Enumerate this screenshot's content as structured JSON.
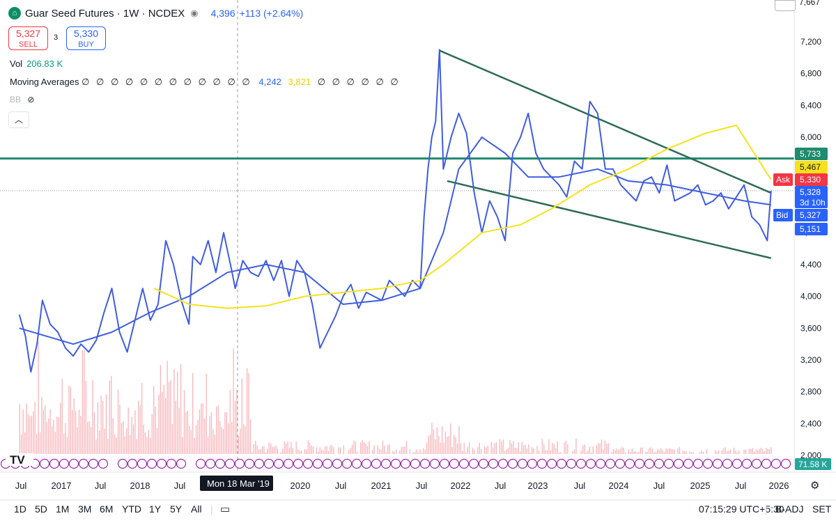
{
  "header": {
    "title": "Guar Seed Futures · 1W · NCDEX",
    "price": "4,396",
    "change": "+113 (+2.64%)",
    "sell_price": "5,327",
    "sell_label": "SELL",
    "buy_price": "5,330",
    "buy_label": "BUY",
    "spread": "3",
    "volume_label": "Vol",
    "volume_value": "206.83 K",
    "ma_label": "Moving Averages",
    "ma_zeros_a": "∅ ∅ ∅ ∅ ∅ ∅ ∅ ∅ ∅ ∅ ∅ ∅",
    "ma_blue": "4,242",
    "ma_yellow": "3,821",
    "ma_zeros_b": "∅ ∅ ∅ ∅ ∅ ∅",
    "bb_label": "BB",
    "collapse_icon": "chevron-up",
    "top_price_fragment": "7,667"
  },
  "colors": {
    "price_line": "#3f5ce0",
    "ma_short": "#3f5ce0",
    "ma_long": "#f5e21b",
    "trend": "#2e6b57",
    "hline": "#1e8a6e",
    "ask": "#f23645",
    "bid": "#2962ff",
    "volume": "#f7a7ad"
  },
  "chart_data": {
    "type": "line",
    "y_axis": {
      "ticks": [
        "7,200",
        "6,800",
        "6,400",
        "6,000",
        "5,600",
        "5,200",
        "4,800",
        "4,400",
        "4,000",
        "3,600",
        "3,200",
        "2,800",
        "2,400",
        "2,000"
      ],
      "range": [
        2000,
        7300
      ]
    },
    "x_axis": {
      "ticks": [
        "Jul",
        "2017",
        "Jul",
        "2018",
        "Jul",
        "2019",
        "Jul",
        "2020",
        "Jul",
        "2021",
        "Jul",
        "2022",
        "Jul",
        "2023",
        "Jul",
        "2024",
        "Jul",
        "2025",
        "Jul",
        "2026"
      ]
    },
    "crosshair_label": "Mon 18 Mar '19",
    "price_labels": [
      {
        "text": "5,733",
        "bg": "#1e8a6e",
        "fg": "#ffffff",
        "value": 5733
      },
      {
        "text": "5,467",
        "bg": "#f5e21b",
        "fg": "#131722",
        "value": 5467
      },
      {
        "text": "5,330",
        "bg": "#f23645",
        "fg": "#ffffff",
        "value": 5330,
        "tag": "Ask"
      },
      {
        "text": "5,328",
        "bg": "#2962ff",
        "fg": "#ffffff",
        "value": 5328,
        "sub": "3d 10h"
      },
      {
        "text": "5,327",
        "bg": "#2962ff",
        "fg": "#ffffff",
        "value": 5327,
        "tag": "Bid"
      },
      {
        "text": "5,151",
        "bg": "#2962ff",
        "fg": "#ffffff",
        "value": 5151
      }
    ],
    "volume_label": "71.58 K",
    "horizontal_line": 5733,
    "trend_lines": [
      {
        "from": [
          2021.75,
          7090
        ],
        "to": [
          2026.05,
          5300
        ]
      },
      {
        "from": [
          2021.85,
          5450
        ],
        "to": [
          2026.05,
          4480
        ]
      }
    ],
    "series": [
      {
        "name": "",
        "points": [
          [
            2016.3,
            3770
          ],
          [
            2016.38,
            3500
          ],
          [
            2016.45,
            3050
          ],
          [
            2016.53,
            3400
          ],
          [
            2016.6,
            3950
          ],
          [
            2016.7,
            3650
          ],
          [
            2016.8,
            3550
          ],
          [
            2016.9,
            3350
          ],
          [
            2017.0,
            3250
          ],
          [
            2017.1,
            3400
          ],
          [
            2017.2,
            3300
          ],
          [
            2017.3,
            3450
          ],
          [
            2017.4,
            3800
          ],
          [
            2017.5,
            4100
          ],
          [
            2017.6,
            3550
          ],
          [
            2017.7,
            3300
          ],
          [
            2017.8,
            3700
          ],
          [
            2017.9,
            4100
          ],
          [
            2018.0,
            3700
          ],
          [
            2018.1,
            3900
          ],
          [
            2018.2,
            4700
          ],
          [
            2018.3,
            4400
          ],
          [
            2018.4,
            3950
          ],
          [
            2018.5,
            3650
          ],
          [
            2018.55,
            4500
          ],
          [
            2018.65,
            4400
          ],
          [
            2018.75,
            4700
          ],
          [
            2018.85,
            4300
          ],
          [
            2018.95,
            4800
          ],
          [
            2019.05,
            4350
          ],
          [
            2019.1,
            4100
          ],
          [
            2019.2,
            4450
          ],
          [
            2019.3,
            4300
          ],
          [
            2019.4,
            4250
          ],
          [
            2019.5,
            4450
          ],
          [
            2019.6,
            4200
          ],
          [
            2019.7,
            4450
          ],
          [
            2019.8,
            4000
          ],
          [
            2019.9,
            4450
          ],
          [
            2020.0,
            4300
          ],
          [
            2020.1,
            3900
          ],
          [
            2020.2,
            3350
          ],
          [
            2020.3,
            3550
          ],
          [
            2020.4,
            3750
          ],
          [
            2020.5,
            4000
          ],
          [
            2020.6,
            4150
          ],
          [
            2020.7,
            3850
          ],
          [
            2020.8,
            4050
          ],
          [
            2020.9,
            4000
          ],
          [
            2021.0,
            3950
          ],
          [
            2021.1,
            4200
          ],
          [
            2021.2,
            4100
          ],
          [
            2021.3,
            4000
          ],
          [
            2021.4,
            4200
          ],
          [
            2021.5,
            4100
          ],
          [
            2021.55,
            5000
          ],
          [
            2021.6,
            5600
          ],
          [
            2021.65,
            6000
          ],
          [
            2021.7,
            6200
          ],
          [
            2021.75,
            7100
          ],
          [
            2021.8,
            5600
          ],
          [
            2021.9,
            6000
          ],
          [
            2022.0,
            6300
          ],
          [
            2022.1,
            6050
          ],
          [
            2022.2,
            5300
          ],
          [
            2022.3,
            4800
          ],
          [
            2022.4,
            5200
          ],
          [
            2022.5,
            5000
          ],
          [
            2022.6,
            4700
          ],
          [
            2022.7,
            5800
          ],
          [
            2022.8,
            6000
          ],
          [
            2022.9,
            6300
          ],
          [
            2023.0,
            5800
          ],
          [
            2023.1,
            5600
          ],
          [
            2023.2,
            5500
          ],
          [
            2023.3,
            5400
          ],
          [
            2023.4,
            5250
          ],
          [
            2023.5,
            5700
          ],
          [
            2023.6,
            5600
          ],
          [
            2023.7,
            6450
          ],
          [
            2023.8,
            6300
          ],
          [
            2023.9,
            5600
          ],
          [
            2024.0,
            5600
          ],
          [
            2024.1,
            5400
          ],
          [
            2024.2,
            5300
          ],
          [
            2024.3,
            5200
          ],
          [
            2024.4,
            5450
          ],
          [
            2024.5,
            5500
          ],
          [
            2024.6,
            5300
          ],
          [
            2024.7,
            5650
          ],
          [
            2024.8,
            5200
          ],
          [
            2024.9,
            5250
          ],
          [
            2025.0,
            5300
          ],
          [
            2025.1,
            5400
          ],
          [
            2025.2,
            5150
          ],
          [
            2025.3,
            5200
          ],
          [
            2025.4,
            5300
          ],
          [
            2025.5,
            5100
          ],
          [
            2025.6,
            5250
          ],
          [
            2025.7,
            5400
          ],
          [
            2025.8,
            5000
          ],
          [
            2025.9,
            4900
          ],
          [
            2026.0,
            4700
          ],
          [
            2026.05,
            5328
          ]
        ]
      },
      {
        "name": "",
        "points": [
          [
            2016.3,
            3600
          ],
          [
            2017.0,
            3400
          ],
          [
            2017.5,
            3550
          ],
          [
            2018.0,
            3800
          ],
          [
            2018.5,
            4000
          ],
          [
            2019.0,
            4300
          ],
          [
            2019.5,
            4400
          ],
          [
            2020.0,
            4300
          ],
          [
            2020.5,
            3900
          ],
          [
            2021.0,
            3950
          ],
          [
            2021.5,
            4100
          ],
          [
            2021.8,
            4800
          ],
          [
            2022.0,
            5600
          ],
          [
            2022.3,
            6000
          ],
          [
            2022.6,
            5800
          ],
          [
            2022.9,
            5500
          ],
          [
            2023.3,
            5500
          ],
          [
            2023.8,
            5600
          ],
          [
            2024.2,
            5450
          ],
          [
            2024.7,
            5400
          ],
          [
            2025.2,
            5300
          ],
          [
            2025.7,
            5200
          ],
          [
            2026.05,
            5151
          ]
        ]
      },
      {
        "name": "",
        "points": [
          [
            2018.05,
            4100
          ],
          [
            2018.5,
            3900
          ],
          [
            2019.0,
            3850
          ],
          [
            2019.5,
            3880
          ],
          [
            2020.0,
            4000
          ],
          [
            2020.5,
            4050
          ],
          [
            2021.0,
            4100
          ],
          [
            2021.5,
            4200
          ],
          [
            2021.8,
            4400
          ],
          [
            2022.3,
            4800
          ],
          [
            2022.8,
            4900
          ],
          [
            2023.2,
            5100
          ],
          [
            2023.7,
            5400
          ],
          [
            2024.2,
            5600
          ],
          [
            2024.7,
            5850
          ],
          [
            2025.2,
            6050
          ],
          [
            2025.6,
            6150
          ],
          [
            2026.05,
            5467
          ]
        ]
      }
    ]
  },
  "toolbar": {
    "ranges": [
      "1D",
      "5D",
      "1M",
      "3M",
      "6M",
      "YTD",
      "1Y",
      "5Y",
      "All"
    ],
    "clock": "07:15:29 UTC+5:30",
    "badj": "B-ADJ",
    "set": "SET"
  }
}
